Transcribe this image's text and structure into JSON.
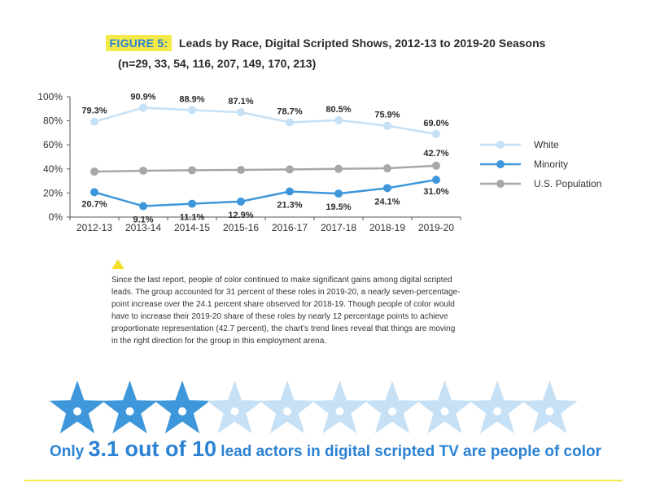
{
  "header": {
    "figure_label": "FIGURE 5:",
    "title": "Leads by Race, Digital Scripted Shows, 2012-13 to 2019-20 Seasons",
    "subtitle": "(n=29, 33, 54, 116, 207, 149, 170, 213)"
  },
  "chart_data": {
    "type": "line",
    "title": "Leads by Race, Digital Scripted Shows, 2012-13 to 2019-20 Seasons",
    "categories": [
      "2012-13",
      "2013-14",
      "2014-15",
      "2015-16",
      "2016-17",
      "2017-18",
      "2018-19",
      "2019-20"
    ],
    "y_ticks": [
      "100%",
      "80%",
      "60%",
      "40%",
      "20%",
      "0%"
    ],
    "y_tick_values": [
      100,
      80,
      60,
      40,
      20,
      0
    ],
    "ylim": [
      0,
      100
    ],
    "legend_position": "right",
    "series": [
      {
        "name": "White",
        "color": "#c6e0f5",
        "values": [
          79.3,
          90.9,
          88.9,
          87.1,
          78.7,
          80.5,
          75.9,
          69.0
        ],
        "labels": [
          "79.3%",
          "90.9%",
          "88.9%",
          "87.1%",
          "78.7%",
          "80.5%",
          "75.9%",
          "69.0%"
        ]
      },
      {
        "name": "Minority",
        "color": "#3e97da",
        "values": [
          20.7,
          9.1,
          11.1,
          12.9,
          21.3,
          19.5,
          24.1,
          31.0
        ],
        "labels": [
          "20.7%",
          "9.1%",
          "11.1%",
          "12.9%",
          "21.3%",
          "19.5%",
          "24.1%",
          "31.0%"
        ]
      },
      {
        "name": "U.S. Population",
        "color": "#a7a7a9",
        "values": [
          37.8,
          38.5,
          38.9,
          39.2,
          39.6,
          40.1,
          40.5,
          42.7
        ],
        "labels": [
          "",
          "",
          "",
          "",
          "",
          "",
          "",
          "42.7%"
        ]
      }
    ]
  },
  "note": {
    "text": "Since the last report, people of color continued to make significant gains among digital scripted leads. The group accounted for 31 percent of these roles in 2019-20, a nearly seven-percentage-point increase over the 24.1 percent share observed for 2018-19. Though people of color would have to increase their 2019-20 share of these roles by nearly 12 percentage points to achieve proportionate representation (42.7 percent), the chart’s trend lines reveal that things are moving in the right direction for the group in this employment arena."
  },
  "infographic": {
    "total_stars": 10,
    "filled_value": 3.1,
    "filled_color": "#3e97da",
    "empty_color": "#c6e0f5",
    "tagline_prefix": "Only ",
    "tagline_number": "3.1 out of 10",
    "tagline_suffix": " lead actors in digital scripted TV are people of color"
  }
}
